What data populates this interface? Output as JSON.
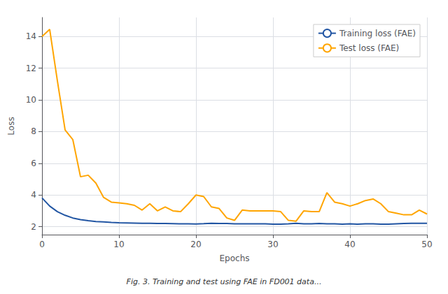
{
  "chart_data": {
    "type": "line",
    "xlabel": "Epochs",
    "ylabel": "Loss",
    "caption": "Fig. 3. Training and test using FAE in FD001 data...",
    "x": [
      0,
      1,
      2,
      3,
      4,
      5,
      6,
      7,
      8,
      9,
      10,
      11,
      12,
      13,
      14,
      15,
      16,
      17,
      18,
      19,
      20,
      21,
      22,
      23,
      24,
      25,
      26,
      27,
      28,
      29,
      30,
      31,
      32,
      33,
      34,
      35,
      36,
      37,
      38,
      39,
      40,
      41,
      42,
      43,
      44,
      45,
      46,
      47,
      48,
      49,
      50
    ],
    "series": [
      {
        "name": "Training loss (FAE)",
        "color": "#2155a3",
        "values": [
          3.82,
          3.3,
          2.95,
          2.72,
          2.55,
          2.45,
          2.38,
          2.33,
          2.3,
          2.27,
          2.25,
          2.24,
          2.23,
          2.22,
          2.22,
          2.21,
          2.2,
          2.19,
          2.18,
          2.18,
          2.17,
          2.19,
          2.22,
          2.21,
          2.2,
          2.18,
          2.18,
          2.18,
          2.18,
          2.18,
          2.16,
          2.16,
          2.18,
          2.22,
          2.18,
          2.18,
          2.2,
          2.18,
          2.18,
          2.16,
          2.18,
          2.16,
          2.18,
          2.18,
          2.16,
          2.16,
          2.18,
          2.2,
          2.22,
          2.22,
          2.22
        ]
      },
      {
        "name": "Test loss (FAE)",
        "color": "#ffa500",
        "values": [
          14.0,
          14.45,
          11.2,
          8.1,
          7.5,
          5.15,
          5.25,
          4.75,
          3.85,
          3.55,
          3.5,
          3.45,
          3.35,
          3.05,
          3.45,
          3.0,
          3.25,
          3.0,
          2.95,
          3.45,
          4.0,
          3.9,
          3.25,
          3.15,
          2.55,
          2.4,
          3.05,
          3.0,
          3.0,
          3.0,
          3.0,
          2.95,
          2.4,
          2.35,
          3.0,
          2.95,
          2.95,
          4.15,
          3.55,
          3.45,
          3.3,
          3.45,
          3.65,
          3.75,
          3.45,
          2.95,
          2.85,
          2.75,
          2.75,
          3.05,
          2.8
        ]
      }
    ],
    "xlim": [
      0,
      50
    ],
    "xticks": [
      0,
      10,
      20,
      30,
      40,
      50
    ],
    "ylim": [
      1.5,
      15.2
    ],
    "yticks": [
      2,
      4,
      6,
      8,
      10,
      12,
      14
    ],
    "grid": true,
    "legend": "upper right"
  }
}
